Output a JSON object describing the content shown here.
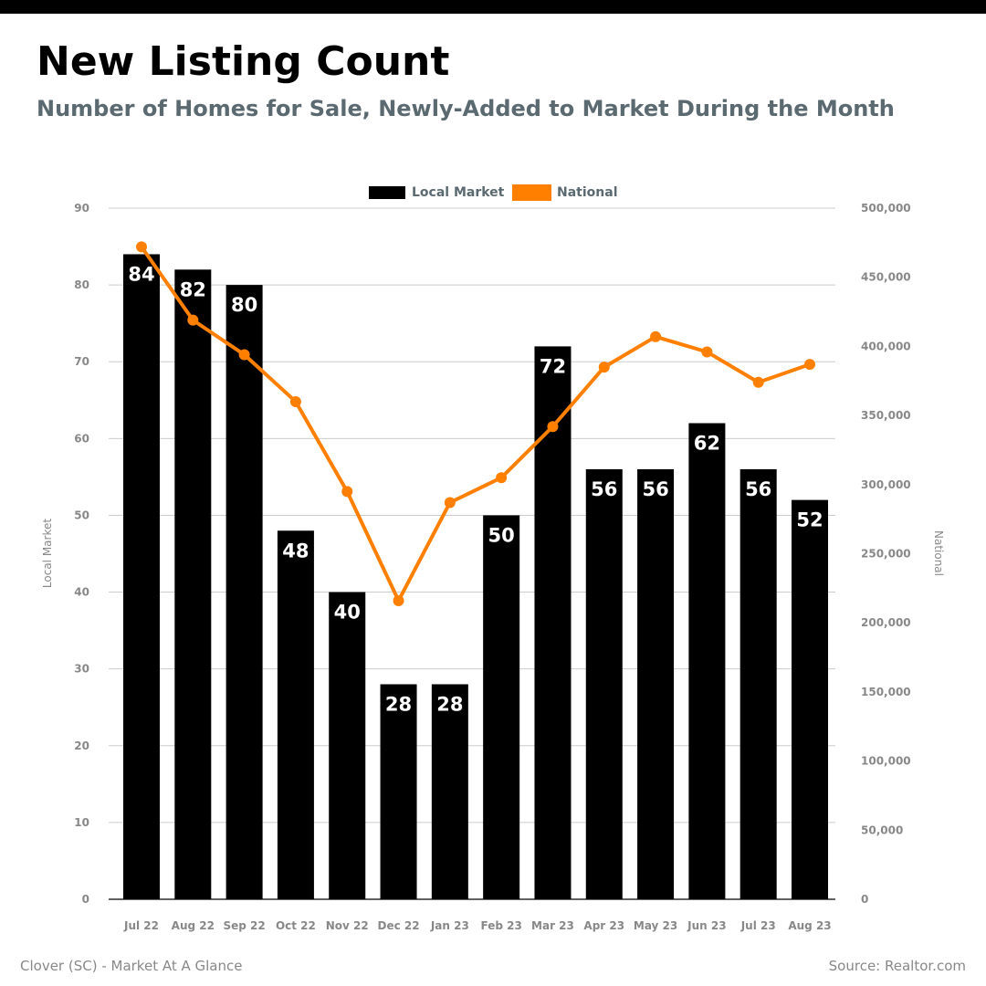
{
  "header": {
    "title": "New Listing Count",
    "subtitle": "Number of Homes for Sale, Newly-Added to Market During the Month"
  },
  "footer": {
    "left": "Clover (SC) - Market At A Glance",
    "right": "Source: Realtor.com"
  },
  "chart_data": {
    "type": "bar",
    "categories": [
      "Jul 22",
      "Aug 22",
      "Sep 22",
      "Oct 22",
      "Nov 22",
      "Dec 22",
      "Jan 23",
      "Feb 23",
      "Mar 23",
      "Apr 23",
      "May 23",
      "Jun 23",
      "Jul 23",
      "Aug 23"
    ],
    "series": [
      {
        "name": "Local Market",
        "type": "bar",
        "axis": "left",
        "color": "#000000",
        "values": [
          84,
          82,
          80,
          48,
          40,
          28,
          28,
          50,
          72,
          56,
          56,
          62,
          56,
          52
        ]
      },
      {
        "name": "National",
        "type": "line",
        "axis": "right",
        "color": "#ff8000",
        "values": [
          472000,
          419000,
          394000,
          360000,
          295000,
          216000,
          287000,
          305000,
          342000,
          385000,
          407000,
          396000,
          374000,
          387000
        ]
      }
    ],
    "ylabel": "Local Market",
    "y2label": "National",
    "ylim": [
      0,
      90
    ],
    "y2lim": [
      0,
      500000
    ],
    "yticks": [
      "0",
      "10",
      "20",
      "30",
      "40",
      "50",
      "60",
      "70",
      "80",
      "90"
    ],
    "y2ticks": [
      "0",
      "50,000",
      "100,000",
      "150,000",
      "200,000",
      "250,000",
      "300,000",
      "350,000",
      "400,000",
      "450,000",
      "500,000"
    ],
    "grid": true,
    "legend_position": "top-center",
    "label_color": "#ffffff",
    "tick_color": "#888888",
    "grid_color": "#cccccc",
    "legend_text_color": "#5a6a70"
  }
}
